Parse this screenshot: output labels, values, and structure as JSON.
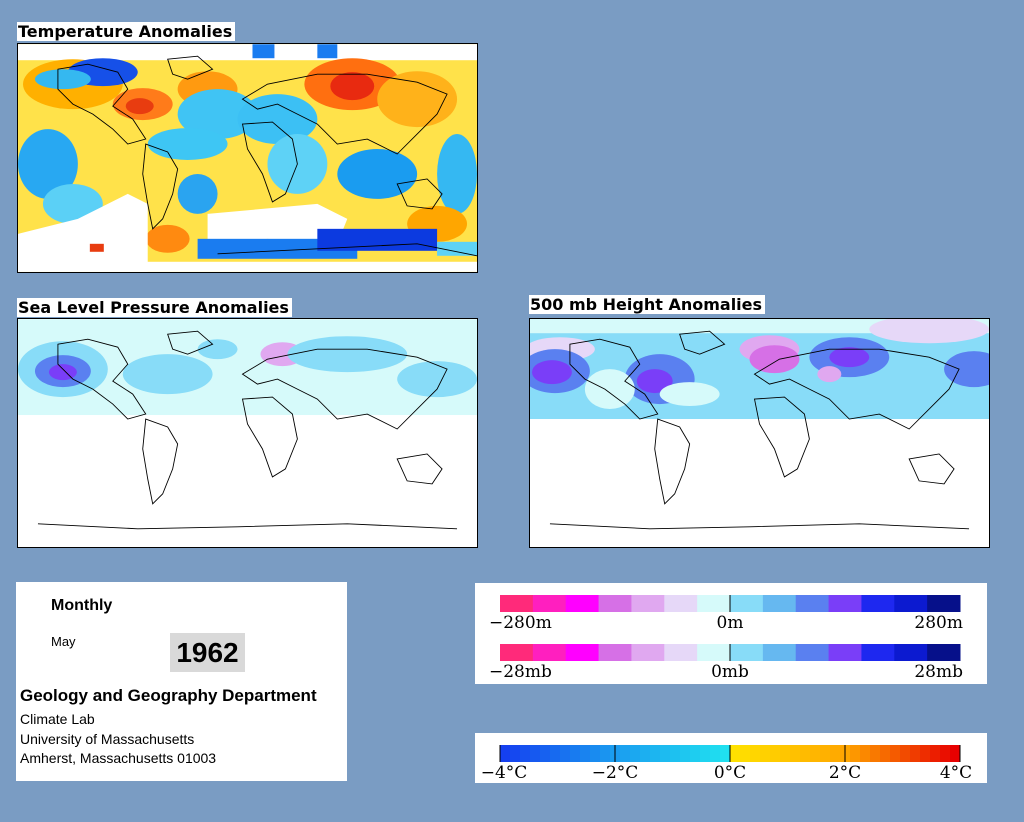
{
  "maps": {
    "temperature": {
      "title": "Temperature Anomalies"
    },
    "slp": {
      "title": "Sea Level Pressure Anomalies"
    },
    "height500": {
      "title": "500 mb Height Anomalies"
    }
  },
  "info": {
    "period": "Monthly",
    "month": "May",
    "year": "1962",
    "department": "Geology and Geography Department",
    "lab": "Climate Lab",
    "university": "University of Massachusetts",
    "address": "Amherst, Massachusetts 01003"
  },
  "legends": {
    "height": {
      "min": "−280m",
      "mid": "0m",
      "max": "280m"
    },
    "pressure": {
      "min": "−28mb",
      "mid": "0mb",
      "max": "28mb"
    },
    "temperature": {
      "ticks": [
        "−4°C",
        "−2°C",
        "0°C",
        "2°C",
        "4°C"
      ]
    }
  },
  "colors": {
    "background": "#7a9cc3",
    "anomaly_scale_negative_to_positive": [
      "#ff2a7a",
      "#ff1fbf",
      "#ff00ff",
      "#d670e6",
      "#e0a8f0",
      "#e6d8f8",
      "#d6fafa",
      "#88dcf8",
      "#66b8f0",
      "#5a80f0",
      "#7a3ef8",
      "#1e28f0",
      "#0c1ad0",
      "#06108a"
    ],
    "temperature_scale": [
      "#1540f0",
      "#1a9cf0",
      "#20e0f0",
      "#ffe100",
      "#ffa600",
      "#ff5a00",
      "#e80000"
    ]
  }
}
